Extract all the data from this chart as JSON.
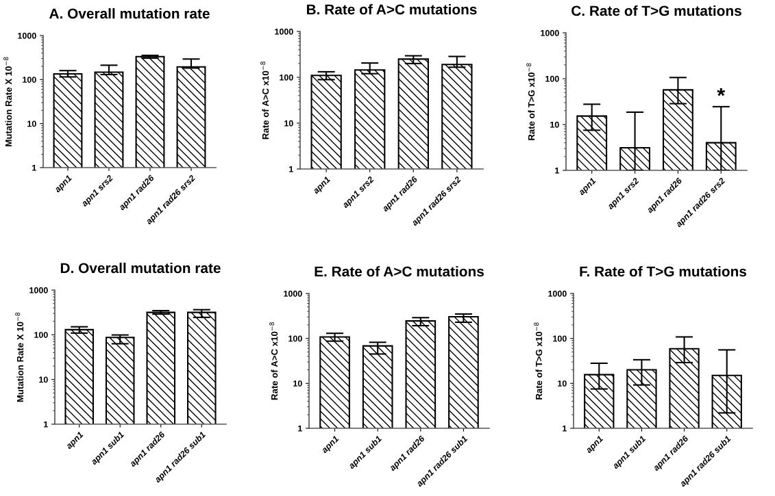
{
  "chart_data": [
    {
      "type": "bar",
      "title": "A. Overall mutation rate",
      "ylabel": "Mutation Rate X 10$^{−8}$",
      "categories": [
        "apn1",
        "apn1 srs2",
        "apn1 rad26",
        "apn1 rad26 srs2"
      ],
      "values": [
        135,
        147,
        333,
        195
      ],
      "errors": [
        [
          115,
          160
        ],
        [
          130,
          212
        ],
        [
          307,
          355
        ],
        [
          183,
          293
        ]
      ],
      "color": "#000000",
      "log": "y",
      "ylim": [
        1,
        1000
      ],
      "yticks": [
        1,
        10,
        100,
        1000
      ]
    },
    {
      "type": "bar",
      "title": "B. Rate of A>C mutations",
      "ylabel": "Rate of A>C x10$^{−8}$",
      "categories": [
        "apn1",
        "apn1 srs2",
        "apn1 rad26",
        "apn1 rad26 srs2"
      ],
      "values": [
        110,
        145,
        250,
        190
      ],
      "errors": [
        [
          89,
          132
        ],
        [
          120,
          205
        ],
        [
          200,
          295
        ],
        [
          166,
          285
        ]
      ],
      "color": "#000000",
      "log": "y",
      "ylim": [
        1,
        1000
      ],
      "yticks": [
        1,
        10,
        100,
        1000
      ]
    },
    {
      "type": "bar",
      "title": "C. Rate of T>G mutations",
      "ylabel": "Rate of T>G x10$^{−8}$",
      "categories": [
        "apn1",
        "apn1 srs2",
        "apn1 rad26",
        "apn1 rad26 srs2"
      ],
      "values": [
        15.3,
        3.1,
        57,
        4.0
      ],
      "errors": [
        [
          7.5,
          27.7
        ],
        [
          1,
          18.6
        ],
        [
          28.5,
          106
        ],
        [
          1,
          24.5
        ]
      ],
      "color": "#000000",
      "log": "y",
      "ylim": [
        1,
        1000
      ],
      "yticks": [
        1,
        10,
        100,
        1000
      ],
      "annotations": [
        {
          "text": "*",
          "x": "apn1 rad26 srs2",
          "y": 24.5
        }
      ]
    },
    {
      "type": "bar",
      "title": "D. Overall mutation rate",
      "ylabel": "Mutation Rate X 10$^{−8}$",
      "categories": [
        "apn1",
        "apn1 sub1",
        "apn1 rad26",
        "apn1 rad26 sub1"
      ],
      "values": [
        130,
        87,
        317,
        317
      ],
      "errors": [
        [
          109,
          151
        ],
        [
          63,
          99
        ],
        [
          290,
          347
        ],
        [
          245,
          364
        ]
      ],
      "color": "#000000",
      "log": "y",
      "ylim": [
        1,
        1000
      ],
      "yticks": [
        1,
        10,
        100,
        1000
      ]
    },
    {
      "type": "bar",
      "title": "E. Rate of A>C mutations",
      "ylabel": "Rate of A>C x10$^{−8}$",
      "categories": [
        "apn1",
        "apn1 sub1",
        "apn1 rad26",
        "apn1 rad26 sub1"
      ],
      "values": [
        108,
        68,
        245,
        303
      ],
      "errors": [
        [
          87,
          130
        ],
        [
          45,
          82
        ],
        [
          192,
          290
        ],
        [
          229,
          350
        ]
      ],
      "color": "#000000",
      "log": "y",
      "ylim": [
        1,
        1000
      ],
      "yticks": [
        1,
        10,
        100,
        1000
      ]
    },
    {
      "type": "bar",
      "title": "F. Rate of T>G mutations",
      "ylabel": "Rate of T>G x10$^{−8}$",
      "categories": [
        "apn1",
        "apn1 sub1",
        "apn1 rad26",
        "apn1 rad26 sub1"
      ],
      "values": [
        15.6,
        20,
        59,
        15
      ],
      "errors": [
        [
          7.5,
          28
        ],
        [
          9.2,
          33.5
        ],
        [
          29,
          108
        ],
        [
          2.2,
          55.6
        ]
      ],
      "color": "#000000",
      "log": "y",
      "ylim": [
        1,
        1000
      ],
      "yticks": [
        1,
        10,
        100,
        1000
      ]
    }
  ]
}
